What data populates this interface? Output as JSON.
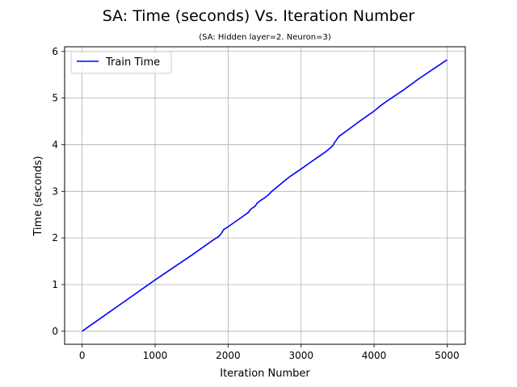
{
  "chart_data": {
    "type": "line",
    "title": "SA: Time (seconds) Vs. Iteration Number",
    "subtitle": "(SA: Hidden layer=2. Neuron=3)",
    "xlabel": "Iteration Number",
    "ylabel": "Time (seconds)",
    "xlim": [
      -240,
      5250
    ],
    "ylim": [
      -0.28,
      6.1
    ],
    "xticks": [
      0,
      1000,
      2000,
      3000,
      4000,
      5000
    ],
    "yticks": [
      0,
      1,
      2,
      3,
      4,
      5,
      6
    ],
    "grid": true,
    "legend_position": "top-left",
    "series": [
      {
        "name": "Train Time",
        "color": "#0000ff",
        "x": [
          0,
          500,
          1000,
          1500,
          1800,
          1870,
          1900,
          1920,
          1940,
          2000,
          2200,
          2280,
          2300,
          2330,
          2370,
          2400,
          2450,
          2500,
          2550,
          2600,
          2700,
          2800,
          2850,
          3000,
          3200,
          3330,
          3400,
          3440,
          3460,
          3480,
          3500,
          3520,
          3600,
          3800,
          4000,
          4100,
          4200,
          4400,
          4600,
          4800,
          5000
        ],
        "y": [
          0,
          0.55,
          1.1,
          1.63,
          1.96,
          2.03,
          2.08,
          2.13,
          2.18,
          2.24,
          2.46,
          2.55,
          2.6,
          2.64,
          2.68,
          2.75,
          2.81,
          2.86,
          2.92,
          3.0,
          3.13,
          3.26,
          3.32,
          3.48,
          3.7,
          3.84,
          3.93,
          3.99,
          4.05,
          4.09,
          4.14,
          4.18,
          4.27,
          4.5,
          4.72,
          4.85,
          4.96,
          5.17,
          5.4,
          5.61,
          5.82
        ]
      }
    ]
  }
}
